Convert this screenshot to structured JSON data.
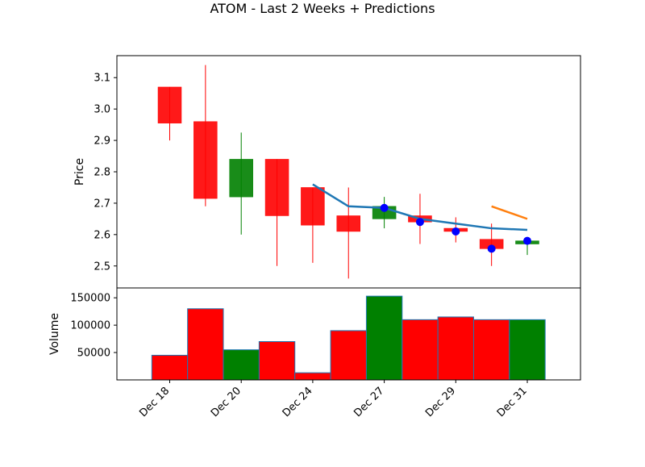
{
  "title": "ATOM - Last 2 Weeks + Predictions",
  "colors": {
    "up": "#008000",
    "down": "#ff0000",
    "trend": "#1f77b4",
    "prediction": "#ff7f0e",
    "marker": "#0000ff"
  },
  "chart_data": [
    {
      "type": "candlestick",
      "ylabel": "Price",
      "ylim": [
        2.43,
        3.17
      ],
      "yticks": [
        "2.5",
        "2.6",
        "2.7",
        "2.8",
        "2.9",
        "3.0",
        "3.1"
      ],
      "xticklabels": [
        "Dec 18",
        "Dec 20",
        "Dec 24",
        "Dec 27",
        "Dec 29",
        "Dec 31"
      ],
      "candles": [
        {
          "open": 3.07,
          "high": 3.07,
          "low": 2.9,
          "close": 2.955,
          "direction": "down"
        },
        {
          "open": 2.96,
          "high": 3.14,
          "low": 2.69,
          "close": 2.715,
          "direction": "down"
        },
        {
          "open": 2.72,
          "high": 2.925,
          "low": 2.6,
          "close": 2.84,
          "direction": "up"
        },
        {
          "open": 2.84,
          "high": 2.84,
          "low": 2.5,
          "close": 2.66,
          "direction": "down"
        },
        {
          "open": 2.75,
          "high": 2.75,
          "low": 2.51,
          "close": 2.63,
          "direction": "down"
        },
        {
          "open": 2.66,
          "high": 2.75,
          "low": 2.46,
          "close": 2.61,
          "direction": "down"
        },
        {
          "open": 2.65,
          "high": 2.72,
          "low": 2.62,
          "close": 2.69,
          "direction": "up"
        },
        {
          "open": 2.66,
          "high": 2.73,
          "low": 2.57,
          "close": 2.64,
          "direction": "down"
        },
        {
          "open": 2.62,
          "high": 2.655,
          "low": 2.575,
          "close": 2.61,
          "direction": "down"
        },
        {
          "open": 2.585,
          "high": 2.635,
          "low": 2.5,
          "close": 2.555,
          "direction": "down"
        },
        {
          "open": 2.57,
          "high": 2.585,
          "low": 2.535,
          "close": 2.58,
          "direction": "up"
        }
      ],
      "trend_line": [
        {
          "i": 4,
          "y": 2.76
        },
        {
          "i": 5,
          "y": 2.69
        },
        {
          "i": 6,
          "y": 2.685
        },
        {
          "i": 7,
          "y": 2.65
        },
        {
          "i": 8,
          "y": 2.635
        },
        {
          "i": 9,
          "y": 2.62
        },
        {
          "i": 10,
          "y": 2.615
        }
      ],
      "prediction_line": [
        {
          "i": 9,
          "y": 2.69
        },
        {
          "i": 10,
          "y": 2.65
        }
      ],
      "markers": [
        {
          "i": 6,
          "y": 2.685
        },
        {
          "i": 7,
          "y": 2.64
        },
        {
          "i": 8,
          "y": 2.61
        },
        {
          "i": 9,
          "y": 2.555
        },
        {
          "i": 10,
          "y": 2.58
        }
      ]
    },
    {
      "type": "bar",
      "ylabel": "Volume",
      "ylim": [
        0,
        168000
      ],
      "yticks": [
        "50000",
        "100000",
        "150000"
      ],
      "values": [
        45000,
        130000,
        55000,
        70000,
        13000,
        90000,
        153000,
        110000,
        115000,
        110000,
        110000
      ],
      "directions": [
        "down",
        "down",
        "up",
        "down",
        "down",
        "down",
        "up",
        "down",
        "down",
        "down",
        "up"
      ]
    }
  ]
}
